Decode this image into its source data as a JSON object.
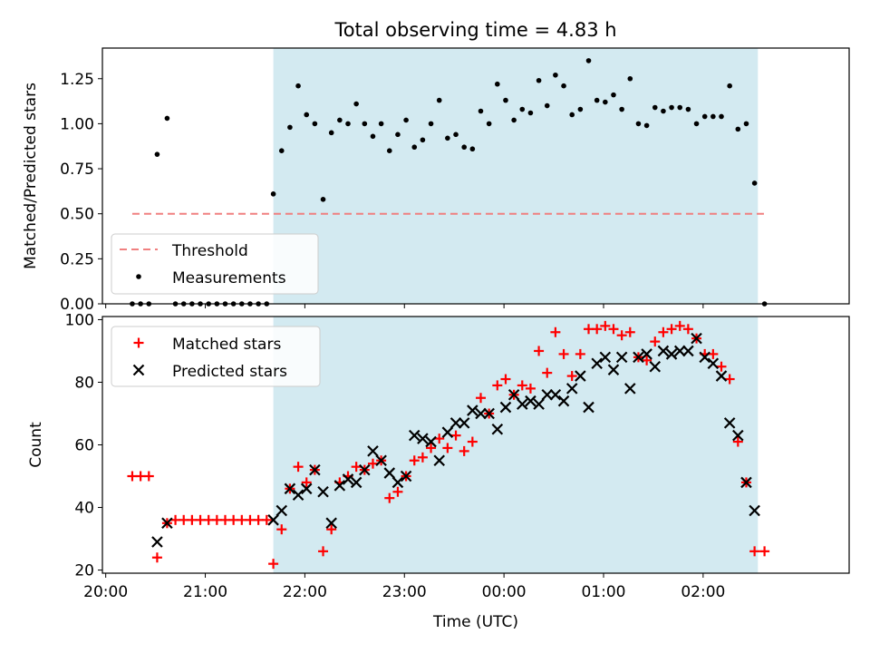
{
  "chart_data": [
    {
      "type": "scatter",
      "title": "Total observing time = 4.83 h",
      "xlabel": "",
      "ylabel": "Matched/Predicted stars",
      "xlim": [
        "19:58",
        "03:28"
      ],
      "ylim": [
        0,
        1.42
      ],
      "y_ticks": [
        0.0,
        0.25,
        0.5,
        0.75,
        1.0,
        1.25
      ],
      "y_tick_labels": [
        "0.00",
        "0.25",
        "0.50",
        "0.75",
        "1.00",
        "1.25"
      ],
      "shaded_span": [
        "21:41",
        "02:33"
      ],
      "legend": {
        "location": "lower left",
        "entries": [
          "Threshold",
          "Measurements"
        ]
      },
      "threshold": {
        "name": "Threshold",
        "value": 0.5,
        "x_range": [
          "20:16",
          "02:37"
        ],
        "color": "#f08080"
      },
      "series": [
        {
          "name": "Measurements",
          "marker": "dot",
          "color": "#000000",
          "x": [
            "20:16",
            "20:21",
            "20:26",
            "20:31",
            "20:37",
            "20:42",
            "20:47",
            "20:52",
            "20:57",
            "21:02",
            "21:07",
            "21:12",
            "21:17",
            "21:22",
            "21:27",
            "21:32",
            "21:37",
            "21:41",
            "21:46",
            "21:51",
            "21:56",
            "22:01",
            "22:06",
            "22:11",
            "22:16",
            "22:21",
            "22:26",
            "22:31",
            "22:36",
            "22:41",
            "22:46",
            "22:51",
            "22:56",
            "23:01",
            "23:06",
            "23:11",
            "23:16",
            "23:21",
            "23:26",
            "23:31",
            "23:36",
            "23:41",
            "23:46",
            "23:51",
            "23:56",
            "00:01",
            "00:06",
            "00:11",
            "00:16",
            "00:21",
            "00:26",
            "00:31",
            "00:36",
            "00:41",
            "00:46",
            "00:51",
            "00:56",
            "01:01",
            "01:06",
            "01:11",
            "01:16",
            "01:21",
            "01:26",
            "01:31",
            "01:36",
            "01:41",
            "01:46",
            "01:51",
            "01:56",
            "02:01",
            "02:06",
            "02:11",
            "02:16",
            "02:21",
            "02:26",
            "02:31",
            "02:37"
          ],
          "y": [
            0,
            0,
            0,
            0.83,
            1.03,
            0,
            0,
            0,
            0,
            0,
            0,
            0,
            0,
            0,
            0,
            0,
            0,
            0.61,
            0.85,
            0.98,
            1.21,
            1.05,
            1.0,
            0.58,
            0.95,
            1.02,
            1.0,
            1.11,
            1.0,
            0.93,
            1.0,
            0.85,
            0.94,
            1.02,
            0.87,
            0.91,
            1.0,
            1.13,
            0.92,
            0.94,
            0.87,
            0.86,
            1.07,
            1.0,
            1.22,
            1.13,
            1.02,
            1.08,
            1.06,
            1.24,
            1.1,
            1.27,
            1.21,
            1.05,
            1.08,
            1.35,
            1.13,
            1.12,
            1.16,
            1.08,
            1.25,
            1.0,
            0.99,
            1.09,
            1.07,
            1.09,
            1.09,
            1.08,
            1.0,
            1.04,
            1.04,
            1.04,
            1.21,
            0.97,
            1.0,
            0.67,
            0
          ]
        }
      ]
    },
    {
      "type": "scatter",
      "title": "",
      "xlabel": "Time (UTC)",
      "ylabel": "Count",
      "xlim": [
        "19:58",
        "03:28"
      ],
      "ylim": [
        19,
        101
      ],
      "y_ticks": [
        20,
        40,
        60,
        80,
        100
      ],
      "y_tick_labels": [
        "20",
        "40",
        "60",
        "80",
        "100"
      ],
      "x_ticks": [
        "20:00",
        "21:00",
        "22:00",
        "23:00",
        "00:00",
        "01:00",
        "02:00"
      ],
      "x_tick_labels": [
        "20:00",
        "21:00",
        "22:00",
        "23:00",
        "00:00",
        "01:00",
        "02:00"
      ],
      "shaded_span": [
        "21:41",
        "02:33"
      ],
      "legend": {
        "location": "upper left",
        "entries": [
          "Matched stars",
          "Predicted stars"
        ]
      },
      "series": [
        {
          "name": "Matched stars",
          "marker": "plus",
          "color": "#ff0000",
          "x": [
            "20:16",
            "20:21",
            "20:26",
            "20:31",
            "20:37",
            "20:42",
            "20:47",
            "20:52",
            "20:57",
            "21:02",
            "21:07",
            "21:12",
            "21:17",
            "21:22",
            "21:27",
            "21:32",
            "21:37",
            "21:41",
            "21:46",
            "21:51",
            "21:56",
            "22:01",
            "22:06",
            "22:11",
            "22:16",
            "22:21",
            "22:26",
            "22:31",
            "22:36",
            "22:41",
            "22:46",
            "22:51",
            "22:56",
            "23:01",
            "23:06",
            "23:11",
            "23:16",
            "23:21",
            "23:26",
            "23:31",
            "23:36",
            "23:41",
            "23:46",
            "23:51",
            "23:56",
            "00:01",
            "00:06",
            "00:11",
            "00:16",
            "00:21",
            "00:26",
            "00:31",
            "00:36",
            "00:41",
            "00:46",
            "00:51",
            "00:56",
            "01:01",
            "01:06",
            "01:11",
            "01:16",
            "01:21",
            "01:26",
            "01:31",
            "01:36",
            "01:41",
            "01:46",
            "01:51",
            "01:56",
            "02:01",
            "02:06",
            "02:11",
            "02:16",
            "02:21",
            "02:26",
            "02:31",
            "02:37"
          ],
          "y": [
            50,
            50,
            50,
            24,
            35,
            36,
            36,
            36,
            36,
            36,
            36,
            36,
            36,
            36,
            36,
            36,
            36,
            22,
            33,
            46,
            53,
            48,
            52,
            26,
            33,
            48,
            50,
            53,
            52,
            54,
            55,
            43,
            45,
            50,
            55,
            56,
            59,
            62,
            59,
            63,
            58,
            61,
            75,
            70,
            79,
            81,
            76,
            79,
            78,
            90,
            83,
            96,
            89,
            82,
            89,
            97,
            97,
            98,
            97,
            95,
            96,
            88,
            87,
            93,
            96,
            97,
            98,
            97,
            94,
            89,
            89,
            85,
            81,
            61,
            48,
            26,
            26
          ]
        },
        {
          "name": "Predicted stars",
          "marker": "x",
          "color": "#000000",
          "x": [
            "20:31",
            "20:37",
            "21:41",
            "21:46",
            "21:51",
            "21:56",
            "22:01",
            "22:06",
            "22:11",
            "22:16",
            "22:21",
            "22:26",
            "22:31",
            "22:36",
            "22:41",
            "22:46",
            "22:51",
            "22:56",
            "23:01",
            "23:06",
            "23:11",
            "23:16",
            "23:21",
            "23:26",
            "23:31",
            "23:36",
            "23:41",
            "23:46",
            "23:51",
            "23:56",
            "00:01",
            "00:06",
            "00:11",
            "00:16",
            "00:21",
            "00:26",
            "00:31",
            "00:36",
            "00:41",
            "00:46",
            "00:51",
            "00:56",
            "01:01",
            "01:06",
            "01:11",
            "01:16",
            "01:21",
            "01:26",
            "01:31",
            "01:36",
            "01:41",
            "01:46",
            "01:51",
            "01:56",
            "02:01",
            "02:06",
            "02:11",
            "02:16",
            "02:21",
            "02:26",
            "02:31"
          ],
          "y": [
            29,
            35,
            36,
            39,
            46,
            44,
            46,
            52,
            45,
            35,
            47,
            49,
            48,
            52,
            58,
            55,
            51,
            48,
            50,
            63,
            62,
            61,
            55,
            64,
            67,
            67,
            71,
            70,
            70,
            65,
            72,
            76,
            73,
            74,
            73,
            76,
            76,
            74,
            78,
            82,
            72,
            86,
            88,
            84,
            88,
            78,
            88,
            89,
            85,
            90,
            89,
            90,
            90,
            94,
            88,
            86,
            82,
            67,
            63,
            48,
            39
          ]
        }
      ]
    }
  ]
}
